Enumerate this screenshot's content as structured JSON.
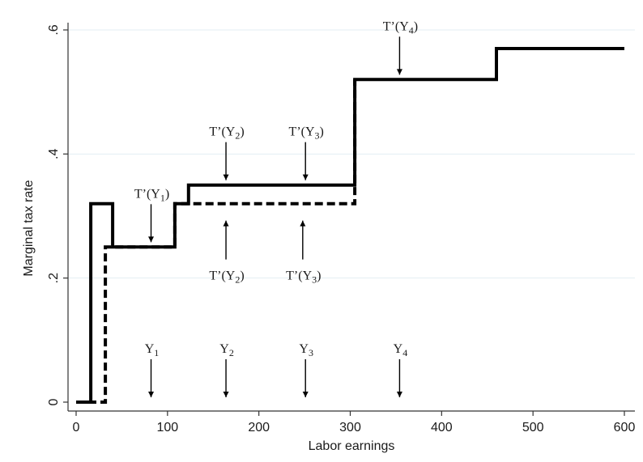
{
  "chart_data": {
    "type": "line",
    "xlabel": "Labor earnings",
    "ylabel": "Marginal tax rate",
    "xlim": [
      0,
      600
    ],
    "ylim": [
      0,
      0.6
    ],
    "x_ticks": [
      {
        "value": 0,
        "label": "0"
      },
      {
        "value": 100,
        "label": "100"
      },
      {
        "value": 200,
        "label": "200"
      },
      {
        "value": 300,
        "label": "300"
      },
      {
        "value": 400,
        "label": "400"
      },
      {
        "value": 500,
        "label": "500"
      },
      {
        "value": 600,
        "label": "600"
      }
    ],
    "y_ticks": [
      {
        "value": 0,
        "label": "0"
      },
      {
        "value": 0.2,
        "label": ".2"
      },
      {
        "value": 0.4,
        "label": ".4"
      },
      {
        "value": 0.6,
        "label": ".6"
      }
    ],
    "grid": true,
    "series": [
      {
        "style": "solid",
        "color": "#000000",
        "x": [
          0,
          16,
          16,
          40,
          40,
          108,
          108,
          123,
          123,
          305,
          305,
          460,
          460,
          600
        ],
        "y": [
          0,
          0,
          0.32,
          0.32,
          0.25,
          0.25,
          0.32,
          0.32,
          0.35,
          0.35,
          0.52,
          0.52,
          0.57,
          0.57
        ]
      },
      {
        "style": "dashed",
        "color": "#000000",
        "x": [
          0,
          32,
          32,
          40,
          40,
          108,
          108,
          305,
          305
        ],
        "y": [
          0,
          0,
          0.25,
          0.25,
          0.25,
          0.25,
          0.32,
          0.32,
          0.52
        ]
      }
    ],
    "annotations": [
      {
        "base": "T’(Y",
        "sub": "1",
        "close": ")",
        "x": 82,
        "y": 0.25,
        "direction": "down",
        "position": "above"
      },
      {
        "base": "T’(Y",
        "sub": "2",
        "close": ")",
        "x": 164,
        "y": 0.35,
        "direction": "down",
        "position": "above"
      },
      {
        "base": "T’(Y",
        "sub": "3",
        "close": ")",
        "x": 251,
        "y": 0.35,
        "direction": "down",
        "position": "above"
      },
      {
        "base": "T’(Y",
        "sub": "4",
        "close": ")",
        "x": 354,
        "y": 0.52,
        "direction": "down",
        "position": "above"
      },
      {
        "base": "T’(Y",
        "sub": "2",
        "close": ")",
        "x": 164,
        "y": 0.32,
        "direction": "up",
        "position": "below"
      },
      {
        "base": "T’(Y",
        "sub": "3",
        "close": ")",
        "x": 248,
        "y": 0.32,
        "direction": "up",
        "position": "below"
      },
      {
        "base": "Y",
        "sub": "1",
        "close": "",
        "x": 82,
        "y": 0,
        "direction": "down",
        "position": "above"
      },
      {
        "base": "Y",
        "sub": "2",
        "close": "",
        "x": 164,
        "y": 0,
        "direction": "down",
        "position": "above"
      },
      {
        "base": "Y",
        "sub": "3",
        "close": "",
        "x": 251,
        "y": 0,
        "direction": "down",
        "position": "above"
      },
      {
        "base": "Y",
        "sub": "4",
        "close": "",
        "x": 354,
        "y": 0,
        "direction": "down",
        "position": "above"
      }
    ]
  }
}
